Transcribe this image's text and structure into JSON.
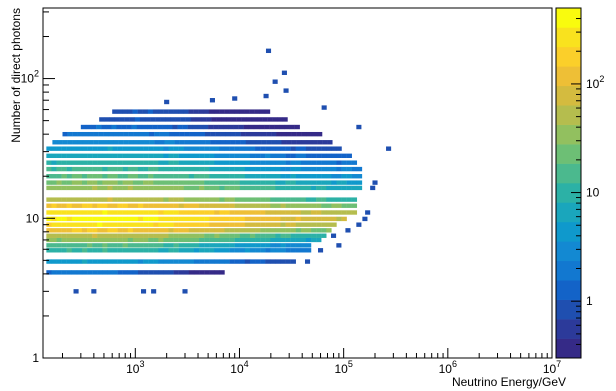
{
  "chart_data": {
    "type": "heatmap",
    "title": "",
    "xlabel": "Neutrino Energy/GeV",
    "ylabel": "Number of direct photons",
    "x_scale": "log",
    "y_scale": "log",
    "xlim": [
      130,
      10000000
    ],
    "ylim": [
      1,
      320
    ],
    "x_ticks": [
      {
        "value": 1000,
        "base": "10",
        "exp": "3"
      },
      {
        "value": 10000,
        "base": "10",
        "exp": "4"
      },
      {
        "value": 100000,
        "base": "10",
        "exp": "5"
      },
      {
        "value": 1000000,
        "base": "10",
        "exp": "6"
      },
      {
        "value": 10000000,
        "base": "10",
        "exp": "7"
      }
    ],
    "y_ticks": [
      {
        "value": 1,
        "label": "1"
      },
      {
        "value": 10,
        "label": "10"
      },
      {
        "value": 100,
        "base": "10",
        "exp": "2"
      }
    ],
    "colorbar": {
      "scale": "log",
      "range": [
        0.3,
        500
      ],
      "ticks": [
        {
          "value": 1,
          "label": "1"
        },
        {
          "value": 10,
          "label": "10"
        },
        {
          "value": 100,
          "base": "10",
          "exp": "2"
        }
      ],
      "palette": [
        "#352a87",
        "#2c3a9a",
        "#1f4fb0",
        "#1363c8",
        "#1278d0",
        "#1389d2",
        "#0f99cc",
        "#1aa6bc",
        "#2cb1a6",
        "#4bb98e",
        "#6dbf75",
        "#92c05f",
        "#b5bd4e",
        "#d4bb3f",
        "#eebf36",
        "#fbcf2a",
        "#f9e21e",
        "#f9fb0e"
      ]
    },
    "bands": [
      {
        "y": 4.1,
        "xmin": 140,
        "xmax": 7500,
        "count": 2
      },
      {
        "y": 4.9,
        "xmin": 140,
        "xmax": 35000,
        "count": 5
      },
      {
        "y": 5.9,
        "xmin": 140,
        "xmax": 50000,
        "count": 12
      },
      {
        "y": 6.4,
        "xmin": 140,
        "xmax": 50000,
        "count": 18
      },
      {
        "y": 7.0,
        "xmin": 140,
        "xmax": 60000,
        "count": 35
      },
      {
        "y": 7.5,
        "xmin": 140,
        "xmax": 70000,
        "count": 60
      },
      {
        "y": 8.2,
        "xmin": 140,
        "xmax": 80000,
        "count": 150
      },
      {
        "y": 9.0,
        "xmin": 140,
        "xmax": 90000,
        "count": 300
      },
      {
        "y": 9.9,
        "xmin": 140,
        "xmax": 110000,
        "count": 400
      },
      {
        "y": 11.0,
        "xmin": 140,
        "xmax": 130000,
        "count": 300
      },
      {
        "y": 12.3,
        "xmin": 140,
        "xmax": 130000,
        "count": 150
      },
      {
        "y": 13.6,
        "xmin": 140,
        "xmax": 140000,
        "count": 60
      },
      {
        "y": 16.5,
        "xmin": 140,
        "xmax": 150000,
        "count": 40
      },
      {
        "y": 18.0,
        "xmin": 140,
        "xmax": 150000,
        "count": 30
      },
      {
        "y": 20.0,
        "xmin": 140,
        "xmax": 150000,
        "count": 20
      },
      {
        "y": 22.5,
        "xmin": 140,
        "xmax": 150000,
        "count": 14
      },
      {
        "y": 25.0,
        "xmin": 140,
        "xmax": 140000,
        "count": 10
      },
      {
        "y": 28.0,
        "xmin": 140,
        "xmax": 120000,
        "count": 7
      },
      {
        "y": 31.5,
        "xmin": 140,
        "xmax": 100000,
        "count": 5
      },
      {
        "y": 35.0,
        "xmin": 160,
        "xmax": 80000,
        "count": 3
      },
      {
        "y": 40.0,
        "xmin": 200,
        "xmax": 60000,
        "count": 2
      },
      {
        "y": 45.0,
        "xmin": 300,
        "xmax": 40000,
        "count": 1.5
      },
      {
        "y": 51.0,
        "xmin": 450,
        "xmax": 30000,
        "count": 1
      },
      {
        "y": 58.0,
        "xmin": 600,
        "xmax": 20000,
        "count": 1
      }
    ],
    "sparse_bins": [
      {
        "x": 270,
        "y": 3.0,
        "count": 1
      },
      {
        "x": 400,
        "y": 3.0,
        "count": 1
      },
      {
        "x": 1200,
        "y": 3.0,
        "count": 1
      },
      {
        "x": 1500,
        "y": 3.0,
        "count": 1
      },
      {
        "x": 3000,
        "y": 3.0,
        "count": 1
      },
      {
        "x": 45000,
        "y": 4.9,
        "count": 1
      },
      {
        "x": 60000,
        "y": 5.9,
        "count": 1
      },
      {
        "x": 90000,
        "y": 6.4,
        "count": 1
      },
      {
        "x": 80000,
        "y": 7.5,
        "count": 1
      },
      {
        "x": 110000,
        "y": 8.2,
        "count": 1
      },
      {
        "x": 140000,
        "y": 9.0,
        "count": 1
      },
      {
        "x": 160000,
        "y": 9.9,
        "count": 1
      },
      {
        "x": 170000,
        "y": 11.0,
        "count": 1
      },
      {
        "x": 190000,
        "y": 16.5,
        "count": 1
      },
      {
        "x": 200000,
        "y": 18.0,
        "count": 1
      },
      {
        "x": 270000,
        "y": 31.5,
        "count": 1
      },
      {
        "x": 140000,
        "y": 45.0,
        "count": 1
      },
      {
        "x": 2000,
        "y": 68.0,
        "count": 1
      },
      {
        "x": 5500,
        "y": 70.0,
        "count": 1
      },
      {
        "x": 9000,
        "y": 72.0,
        "count": 1
      },
      {
        "x": 18000,
        "y": 75.0,
        "count": 1
      },
      {
        "x": 28000,
        "y": 82.0,
        "count": 1
      },
      {
        "x": 22000,
        "y": 95.0,
        "count": 1
      },
      {
        "x": 27000,
        "y": 110.0,
        "count": 1
      },
      {
        "x": 19000,
        "y": 158.0,
        "count": 1
      },
      {
        "x": 65000,
        "y": 62.0,
        "count": 1
      }
    ]
  }
}
